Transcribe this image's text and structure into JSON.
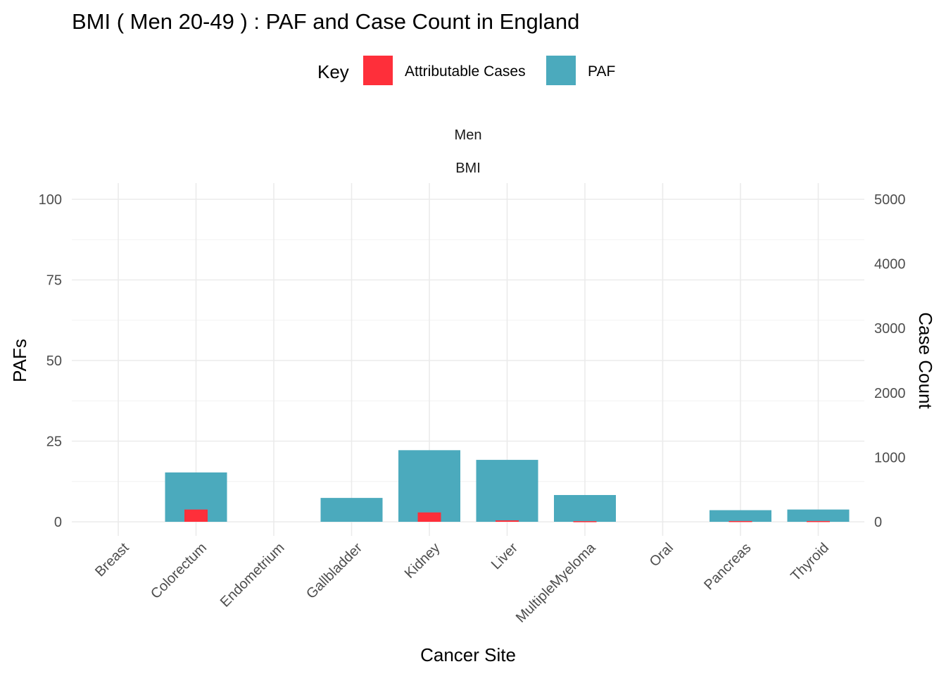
{
  "title": "BMI ( Men 20-49 ) : PAF and Case Count in England",
  "legend": {
    "title": "Key",
    "items": [
      {
        "label": "Attributable Cases",
        "color": "#FE2F3A"
      },
      {
        "label": "PAF",
        "color": "#4BAABD"
      }
    ]
  },
  "facet": {
    "row1": "Men",
    "row2": "BMI"
  },
  "chart_data": {
    "type": "bar",
    "categories": [
      "Breast",
      "Colorectum",
      "Endometrium",
      "Gallbladder",
      "Kidney",
      "Liver",
      "MultipleMyeloma",
      "Oral",
      "Pancreas",
      "Thyroid"
    ],
    "series": [
      {
        "name": "PAF",
        "axis": "left",
        "values": [
          0,
          15.3,
          0,
          7.4,
          22.2,
          19.2,
          8.3,
          0,
          3.6,
          3.8
        ]
      },
      {
        "name": "Attributable Cases",
        "axis": "right",
        "values": [
          0,
          190,
          0,
          0,
          145,
          22,
          10,
          0,
          12,
          12
        ]
      }
    ],
    "xlabel": "Cancer Site",
    "ylabel": "PAFs",
    "y2label": "Case Count",
    "ylim": [
      0,
      100
    ],
    "y2lim": [
      0,
      5000
    ],
    "yticks": [
      "0",
      "25",
      "50",
      "75",
      "100"
    ],
    "y2ticks": [
      "0",
      "1000",
      "2000",
      "3000",
      "4000",
      "5000"
    ],
    "grid": true,
    "legend_position": "top"
  }
}
